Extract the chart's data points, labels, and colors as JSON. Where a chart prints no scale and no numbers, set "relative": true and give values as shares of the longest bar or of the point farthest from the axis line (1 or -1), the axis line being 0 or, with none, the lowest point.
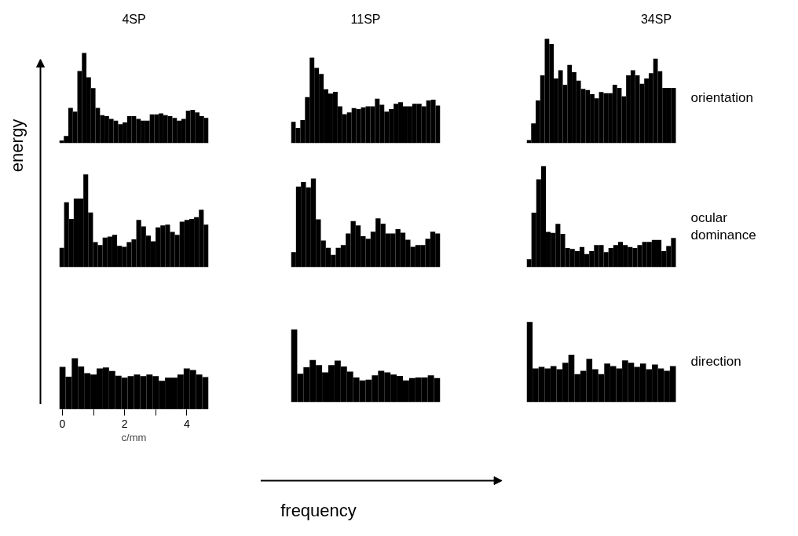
{
  "chart_data": [
    {
      "type": "bar",
      "relative": true,
      "title": "4SP",
      "categories": [
        null,
        null,
        null,
        null,
        null,
        null,
        null,
        null,
        null,
        null,
        null,
        null,
        null,
        null,
        null,
        null,
        null,
        null,
        null,
        null,
        null,
        null,
        null,
        null,
        null,
        null,
        null,
        null,
        null,
        null,
        null,
        null,
        null
      ],
      "values": [
        0.03,
        0.08,
        0.39,
        0.35,
        0.8,
        1.0,
        0.73,
        0.61,
        0.39,
        0.31,
        0.3,
        0.27,
        0.25,
        0.21,
        0.23,
        0.3,
        0.3,
        0.27,
        0.25,
        0.25,
        0.32,
        0.32,
        0.33,
        0.31,
        0.3,
        0.28,
        0.25,
        0.27,
        0.36,
        0.37,
        0.34,
        0.3,
        0.28
      ],
      "color": "#000000",
      "tick_labels": false
    },
    {
      "type": "bar",
      "relative": true,
      "title": "11SP",
      "categories": [
        null,
        null,
        null,
        null,
        null,
        null,
        null,
        null,
        null,
        null,
        null,
        null,
        null,
        null,
        null,
        null,
        null,
        null,
        null,
        null,
        null,
        null,
        null,
        null,
        null,
        null,
        null,
        null,
        null,
        null,
        null,
        null
      ],
      "values": [
        0.25,
        0.18,
        0.27,
        0.54,
        1.0,
        0.88,
        0.81,
        0.63,
        0.58,
        0.6,
        0.43,
        0.34,
        0.36,
        0.41,
        0.4,
        0.42,
        0.43,
        0.43,
        0.52,
        0.45,
        0.37,
        0.4,
        0.46,
        0.48,
        0.43,
        0.43,
        0.46,
        0.46,
        0.43,
        0.5,
        0.51,
        0.44
      ],
      "color": "#000000",
      "tick_labels": false
    },
    {
      "type": "bar",
      "relative": true,
      "title": "34SP",
      "annotations": [
        "orientation"
      ],
      "categories": [
        null,
        null,
        null,
        null,
        null,
        null,
        null,
        null,
        null,
        null,
        null,
        null,
        null,
        null,
        null,
        null,
        null,
        null,
        null,
        null,
        null,
        null,
        null,
        null,
        null,
        null,
        null,
        null,
        null,
        null,
        null,
        null,
        null
      ],
      "values": [
        0.03,
        0.19,
        0.41,
        0.65,
        1.0,
        0.95,
        0.62,
        0.7,
        0.56,
        0.75,
        0.68,
        0.6,
        0.52,
        0.51,
        0.47,
        0.43,
        0.49,
        0.48,
        0.48,
        0.56,
        0.53,
        0.45,
        0.65,
        0.7,
        0.65,
        0.57,
        0.62,
        0.67,
        0.81,
        0.69,
        0.53,
        0.53,
        0.53
      ],
      "color": "#000000",
      "tick_labels": false
    },
    {
      "type": "bar",
      "relative": true,
      "categories": [
        null,
        null,
        null,
        null,
        null,
        null,
        null,
        null,
        null,
        null,
        null,
        null,
        null,
        null,
        null,
        null,
        null,
        null,
        null,
        null,
        null,
        null,
        null,
        null,
        null,
        null,
        null,
        null,
        null,
        null,
        null
      ],
      "values": [
        0.21,
        0.7,
        0.52,
        0.74,
        0.74,
        1.0,
        0.59,
        0.27,
        0.24,
        0.32,
        0.33,
        0.35,
        0.23,
        0.22,
        0.27,
        0.3,
        0.51,
        0.44,
        0.34,
        0.28,
        0.43,
        0.45,
        0.46,
        0.38,
        0.35,
        0.49,
        0.51,
        0.52,
        0.54,
        0.62,
        0.46
      ],
      "color": "#000000",
      "tick_labels": false
    },
    {
      "type": "bar",
      "relative": true,
      "categories": [
        null,
        null,
        null,
        null,
        null,
        null,
        null,
        null,
        null,
        null,
        null,
        null,
        null,
        null,
        null,
        null,
        null,
        null,
        null,
        null,
        null,
        null,
        null,
        null,
        null,
        null,
        null,
        null,
        null,
        null
      ],
      "values": [
        0.17,
        0.91,
        0.96,
        0.9,
        1.0,
        0.54,
        0.3,
        0.22,
        0.14,
        0.22,
        0.25,
        0.38,
        0.52,
        0.47,
        0.35,
        0.32,
        0.4,
        0.55,
        0.49,
        0.38,
        0.38,
        0.43,
        0.39,
        0.31,
        0.23,
        0.25,
        0.25,
        0.32,
        0.4,
        0.38
      ],
      "color": "#000000",
      "tick_labels": false
    },
    {
      "type": "bar",
      "relative": true,
      "annotations": [
        "ocular\ndominance"
      ],
      "categories": [
        null,
        null,
        null,
        null,
        null,
        null,
        null,
        null,
        null,
        null,
        null,
        null,
        null,
        null,
        null,
        null,
        null,
        null,
        null,
        null,
        null,
        null,
        null,
        null,
        null,
        null,
        null,
        null,
        null,
        null,
        null
      ],
      "values": [
        0.08,
        0.54,
        0.87,
        1.0,
        0.35,
        0.34,
        0.43,
        0.33,
        0.19,
        0.18,
        0.16,
        0.2,
        0.13,
        0.16,
        0.22,
        0.22,
        0.15,
        0.19,
        0.22,
        0.25,
        0.22,
        0.2,
        0.19,
        0.22,
        0.25,
        0.25,
        0.27,
        0.27,
        0.16,
        0.21,
        0.29
      ],
      "color": "#000000",
      "tick_labels": false
    },
    {
      "type": "bar",
      "relative": true,
      "xlabel": "c/mm",
      "x": [
        0,
        0.2,
        0.4,
        0.6,
        0.8,
        1.0,
        1.2,
        1.4,
        1.6,
        1.8,
        2.0,
        2.2,
        2.4,
        2.6,
        2.8,
        3.0,
        3.2,
        3.4,
        3.6,
        3.8,
        4.0,
        4.2,
        4.4,
        4.6
      ],
      "values": [
        0.83,
        0.64,
        1.0,
        0.84,
        0.71,
        0.68,
        0.8,
        0.82,
        0.75,
        0.66,
        0.62,
        0.65,
        0.68,
        0.65,
        0.68,
        0.65,
        0.56,
        0.62,
        0.62,
        0.68,
        0.8,
        0.77,
        0.68,
        0.63
      ],
      "color": "#000000",
      "xlim": [
        -0.1,
        4.7
      ],
      "xticks": [
        0,
        {
          "value": 1,
          "label": null
        },
        2,
        {
          "value": 3,
          "label": null
        },
        4
      ],
      "tick_labels": "x"
    },
    {
      "type": "bar",
      "relative": true,
      "categories": [
        null,
        null,
        null,
        null,
        null,
        null,
        null,
        null,
        null,
        null,
        null,
        null,
        null,
        null,
        null,
        null,
        null,
        null,
        null,
        null,
        null,
        null,
        null,
        null
      ],
      "values": [
        1.0,
        0.39,
        0.48,
        0.58,
        0.51,
        0.41,
        0.51,
        0.57,
        0.49,
        0.42,
        0.34,
        0.3,
        0.31,
        0.37,
        0.43,
        0.41,
        0.38,
        0.36,
        0.3,
        0.33,
        0.34,
        0.34,
        0.37,
        0.33
      ],
      "color": "#000000",
      "tick_labels": false
    },
    {
      "type": "bar",
      "relative": true,
      "annotations": [
        "direction"
      ],
      "categories": [
        null,
        null,
        null,
        null,
        null,
        null,
        null,
        null,
        null,
        null,
        null,
        null,
        null,
        null,
        null,
        null,
        null,
        null,
        null,
        null,
        null,
        null,
        null,
        null,
        null
      ],
      "values": [
        1.0,
        0.42,
        0.44,
        0.42,
        0.45,
        0.41,
        0.49,
        0.59,
        0.35,
        0.39,
        0.54,
        0.41,
        0.35,
        0.48,
        0.45,
        0.42,
        0.52,
        0.49,
        0.44,
        0.48,
        0.41,
        0.47,
        0.42,
        0.39,
        0.45
      ],
      "color": "#000000",
      "tick_labels": false
    },
    {
      "type": "other",
      "annotations": [
        "energy",
        "frequency"
      ]
    }
  ]
}
